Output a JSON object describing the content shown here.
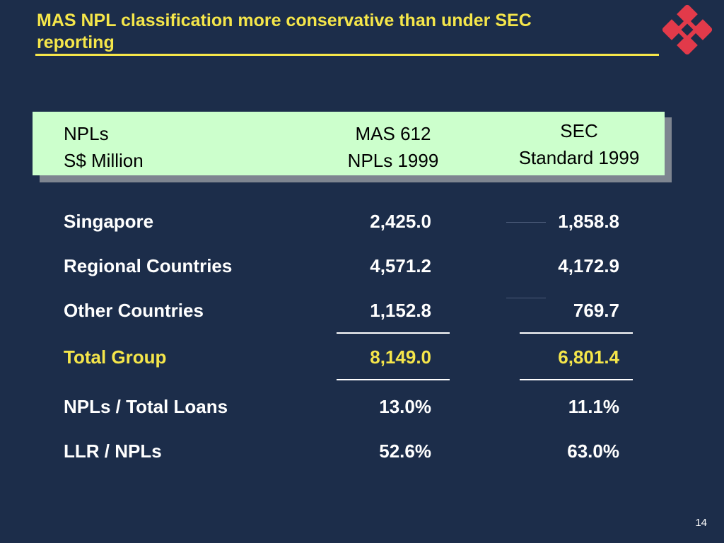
{
  "slide": {
    "title": "MAS NPL classification more conservative than under SEC reporting",
    "page_number": "14",
    "logo": "red-x-logo"
  },
  "header": {
    "col_label_line1": "NPLs",
    "col_label_line2": "S$ Million",
    "col_mas_line1": "MAS 612",
    "col_mas_line2": "NPLs 1999",
    "col_sec_line1": "SEC",
    "col_sec_line2": "Standard 1999"
  },
  "rows": [
    {
      "label": "Singapore",
      "mas": "2,425.0",
      "sec": "1,858.8"
    },
    {
      "label": "Regional Countries",
      "mas": "4,571.2",
      "sec": "4,172.9"
    },
    {
      "label": "Other Countries",
      "mas": "1,152.8",
      "sec": "769.7"
    },
    {
      "label": "Total Group",
      "mas": "8,149.0",
      "sec": "6,801.4"
    },
    {
      "label": "NPLs / Total Loans",
      "mas": "13.0%",
      "sec": "11.1%"
    },
    {
      "label": "LLR / NPLs",
      "mas": "52.6%",
      "sec": "63.0%"
    }
  ],
  "colors": {
    "background": "#1c2d4a",
    "title": "#f5e64a",
    "header_box": "#ccffcc",
    "logo": "#e23a4a"
  }
}
